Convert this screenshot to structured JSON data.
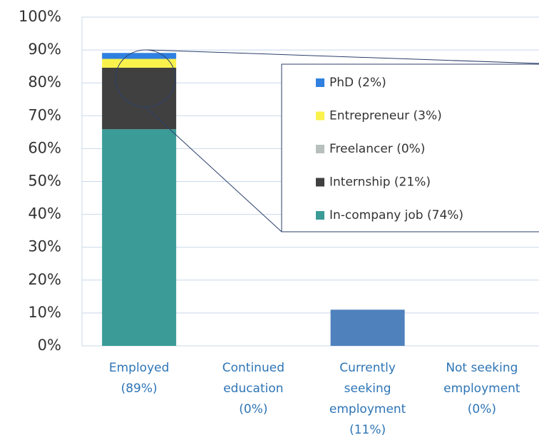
{
  "chart_data": {
    "type": "stacked_bar",
    "categories": [
      [
        "Employed",
        "(89%)"
      ],
      [
        "Continued",
        "education",
        "(0%)"
      ],
      [
        "Currently",
        "seeking",
        "employment",
        "(11%)"
      ],
      [
        "Not seeking",
        "employment",
        "(0%)"
      ]
    ],
    "series": [
      {
        "name": "In-company job (74%)",
        "color": "#3b9b97",
        "values": [
          65.9,
          0,
          0,
          0
        ]
      },
      {
        "name": "Internship (21%)",
        "color": "#404040",
        "values": [
          18.7,
          0,
          0,
          0
        ]
      },
      {
        "name": "Freelancer (0%)",
        "color": "#b8c0be",
        "values": [
          0,
          0,
          0,
          0
        ]
      },
      {
        "name": "Entrepreneur (3%)",
        "color": "#f9f24c",
        "values": [
          2.7,
          0,
          0,
          0
        ]
      },
      {
        "name": "PhD (2%)",
        "color": "#2f80e0",
        "values": [
          1.8,
          0,
          0,
          0
        ]
      },
      {
        "color": "#4f81bd",
        "values": [
          0,
          0,
          11,
          0
        ]
      }
    ],
    "ylim": [
      0,
      100
    ],
    "yticks": [
      {
        "value": 0,
        "label": "0%"
      },
      {
        "value": 10,
        "label": "10%"
      },
      {
        "value": 20,
        "label": "20%"
      },
      {
        "value": 30,
        "label": "30%"
      },
      {
        "value": 40,
        "label": "40%"
      },
      {
        "value": 50,
        "label": "50%"
      },
      {
        "value": 60,
        "label": "60%"
      },
      {
        "value": 70,
        "label": "70%"
      },
      {
        "value": 80,
        "label": "80%"
      },
      {
        "value": 90,
        "label": "90%"
      },
      {
        "value": 100,
        "label": "100%"
      }
    ],
    "grid": true
  }
}
